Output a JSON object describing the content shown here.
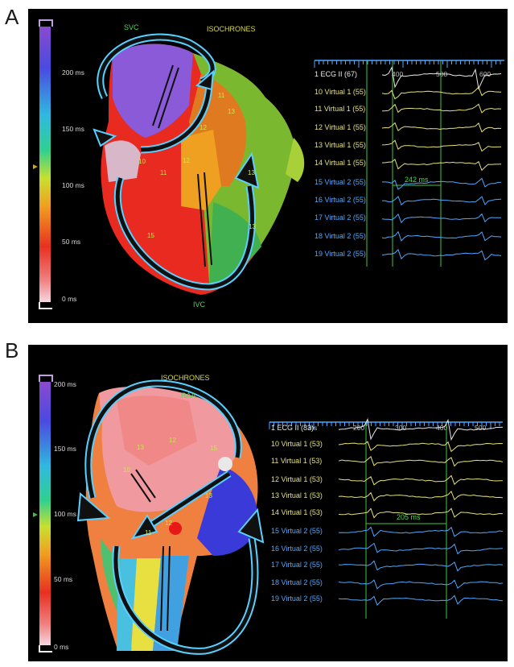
{
  "panels": [
    {
      "letter": "A",
      "title": "ISOCHRONES",
      "anatomy": [
        "SVC",
        "IVC"
      ],
      "scale_labels": [
        "200 ms",
        "150 ms",
        "100 ms",
        "50 ms",
        "0 ms"
      ],
      "axis_ticks": [
        "400",
        "500",
        "600"
      ],
      "channels": [
        "1 ECG II (67)",
        "10 Virtual 1 (55)",
        "11 Virtual 1 (55)",
        "12 Virtual 1 (55)",
        "13 Virtual 1 (55)",
        "14 Virtual 1 (55)",
        "15 Virtual 2 (55)",
        "16 Virtual 2 (55)",
        "17 Virtual 2 (55)",
        "18 Virtual 2 (55)",
        "19 Virtual 2 (55)"
      ],
      "measurement": "242 ms",
      "site_labels": [
        "11",
        "12",
        "10",
        "11",
        "12",
        "13",
        "15",
        "13",
        "13"
      ]
    },
    {
      "letter": "B",
      "title": "ISOCHRONES",
      "anatomy": [
        "RAA"
      ],
      "scale_labels": [
        "200 ms",
        "150 ms",
        "100 ms",
        "50 ms",
        "0 ms"
      ],
      "axis_ticks": [
        "ms",
        "200",
        "300",
        "400",
        "500"
      ],
      "channels": [
        "1 ECG II (83)",
        "10 Virtual 1 (53)",
        "11 Virtual 1 (53)",
        "12 Virtual 1 (53)",
        "13 Virtual 1 (53)",
        "14 Virtual 1 (53)",
        "15 Virtual 2 (55)",
        "16 Virtual 2 (55)",
        "17 Virtual 2 (55)",
        "18 Virtual 2 (55)",
        "19 Virtual 2 (55)"
      ],
      "measurement": "205 ms",
      "site_labels": [
        "13",
        "12",
        "10",
        "11",
        "12",
        "15",
        "13"
      ]
    }
  ],
  "colors": {
    "panel_bg": "#000000",
    "label_yellow": "#d9d94a",
    "label_green": "#4fd84f",
    "trace_yellow": "#e6e07a",
    "trace_blue": "#4fa8ff",
    "marker_line": "#3fc83f",
    "arrow_outline": "#5ad0ff"
  }
}
